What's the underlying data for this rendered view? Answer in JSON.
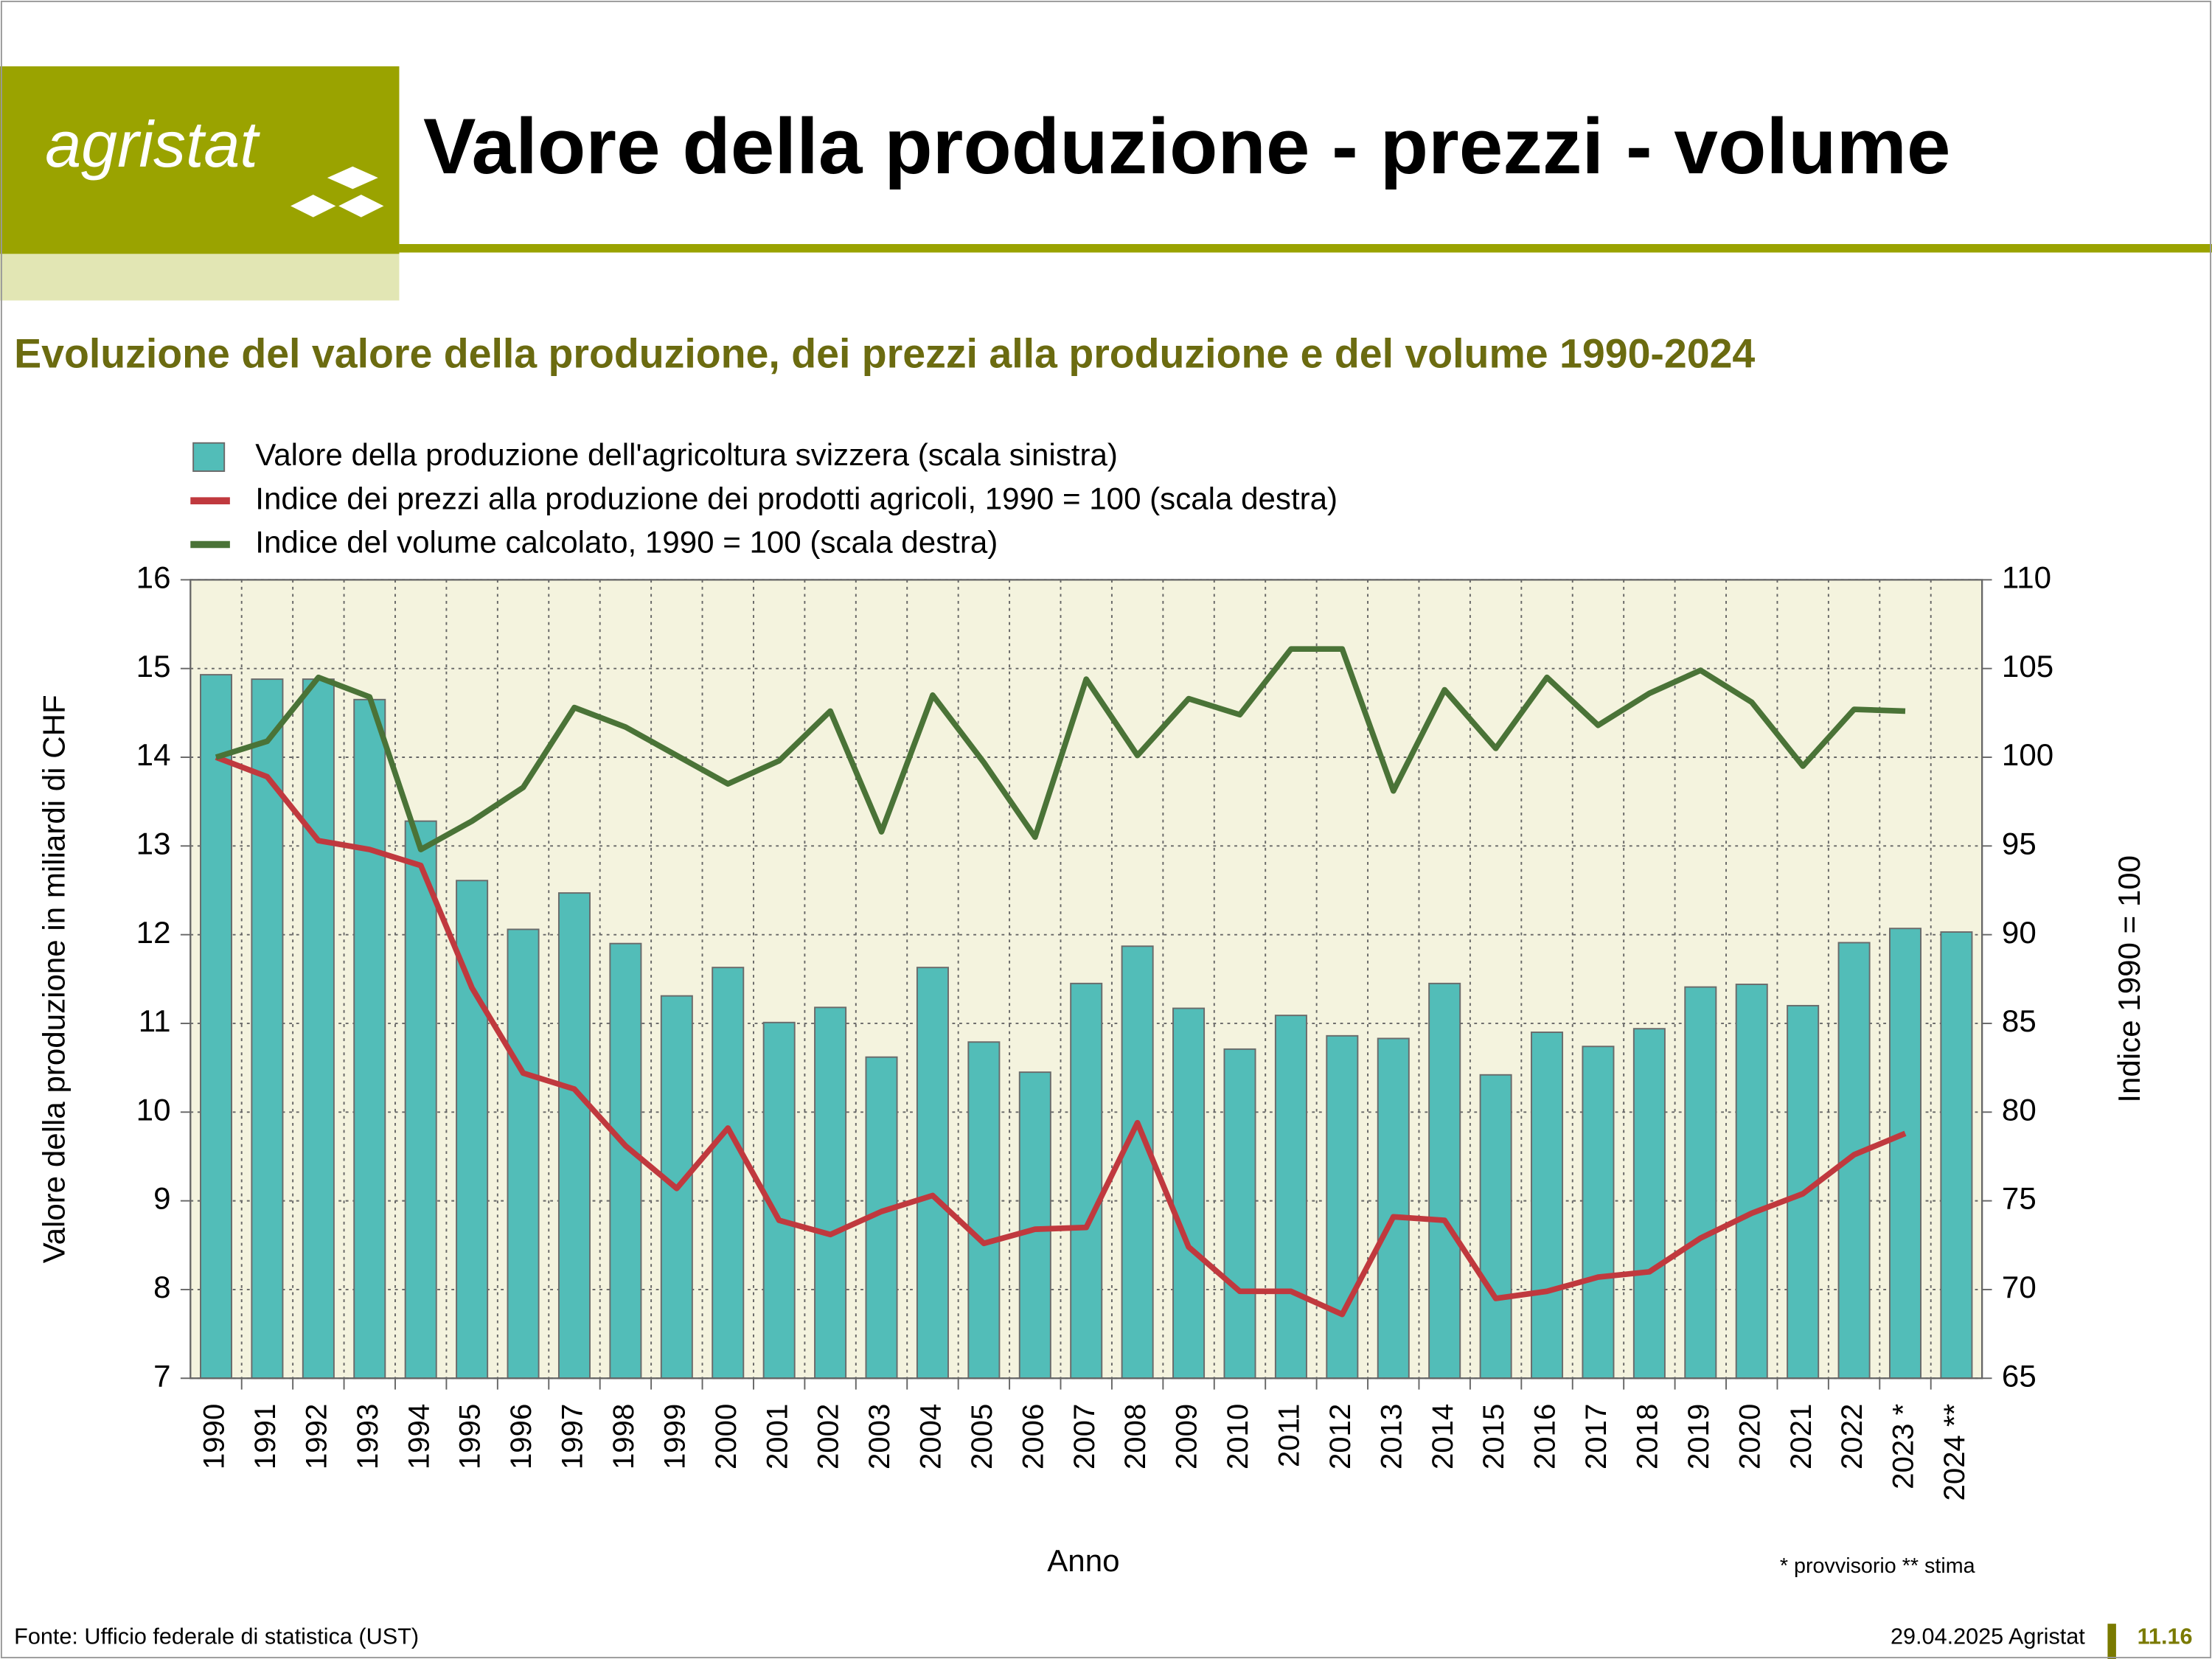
{
  "header": {
    "logo": "agristat",
    "title": "Valore della produzione - prezzi - volume"
  },
  "chart_data": {
    "type": "combo",
    "title": "Evoluzione del valore della produzione, dei prezzi alla produzione e del volume 1990-2024",
    "x_label": "Anno",
    "y_label": "Valore della produzione in miliardi di CHF",
    "y2_label": "Indice 1990 = 100",
    "note": "* provvisorio ** stima",
    "categories": [
      "1990",
      "1991",
      "1992",
      "1993",
      "1994",
      "1995",
      "1996",
      "1997",
      "1998",
      "1999",
      "2000",
      "2001",
      "2002",
      "2003",
      "2004",
      "2005",
      "2006",
      "2007",
      "2008",
      "2009",
      "2010",
      "2011",
      "2012",
      "2013",
      "2014",
      "2015",
      "2016",
      "2017",
      "2018",
      "2019",
      "2020",
      "2021",
      "2022",
      "2023 *",
      "2024 **"
    ],
    "series": [
      {
        "name": "Valore della produzione dell'agricoltura svizzera (scala sinistra)",
        "type": "bar",
        "axis": "y",
        "color": "#52bdb8",
        "values": [
          14.93,
          14.88,
          14.88,
          14.65,
          13.28,
          12.61,
          12.06,
          12.47,
          11.9,
          11.31,
          11.63,
          11.01,
          11.18,
          10.62,
          11.63,
          10.79,
          10.45,
          11.45,
          11.87,
          11.17,
          10.71,
          11.09,
          10.86,
          10.83,
          11.45,
          10.42,
          10.9,
          10.74,
          10.94,
          11.41,
          11.44,
          11.2,
          11.91,
          12.07,
          12.03
        ]
      },
      {
        "name": "Indice dei prezzi alla produzione dei prodotti agricoli, 1990 = 100 (scala destra)",
        "type": "line",
        "axis": "y2",
        "color": "#c0393e",
        "values": [
          100,
          98.9,
          95.3,
          94.8,
          93.9,
          87.0,
          82.2,
          81.3,
          78.1,
          75.7,
          79.1,
          73.9,
          73.1,
          74.4,
          75.3,
          72.6,
          73.4,
          73.5,
          79.4,
          72.4,
          69.9,
          69.9,
          68.6,
          74.1,
          73.9,
          69.5,
          69.9,
          70.7,
          71.0,
          72.9,
          74.3,
          75.4,
          77.6,
          78.8,
          null
        ]
      },
      {
        "name": "Indice del volume calcolato, 1990 = 100 (scala destra)",
        "type": "line",
        "axis": "y2",
        "color": "#4a7337",
        "values": [
          100,
          100.9,
          104.5,
          103.4,
          94.8,
          96.4,
          98.3,
          102.8,
          101.7,
          100.1,
          98.5,
          99.8,
          102.6,
          95.8,
          103.5,
          99.7,
          95.5,
          104.4,
          100.1,
          103.3,
          102.4,
          106.1,
          106.1,
          98.1,
          103.8,
          100.5,
          104.5,
          101.8,
          103.6,
          104.9,
          103.1,
          99.5,
          102.7,
          102.6,
          null
        ]
      }
    ],
    "ylim": [
      7,
      16
    ],
    "yticks": [
      7,
      8,
      9,
      10,
      11,
      12,
      13,
      14,
      15,
      16
    ],
    "y2lim": [
      65,
      110
    ],
    "y2ticks": [
      65,
      70,
      75,
      80,
      85,
      90,
      95,
      100,
      105,
      110
    ],
    "grid": true
  },
  "footer": {
    "source": "Fonte: Ufficio federale di statistica (UST)",
    "date": "29.04.2025 Agristat",
    "page": "11.16"
  }
}
